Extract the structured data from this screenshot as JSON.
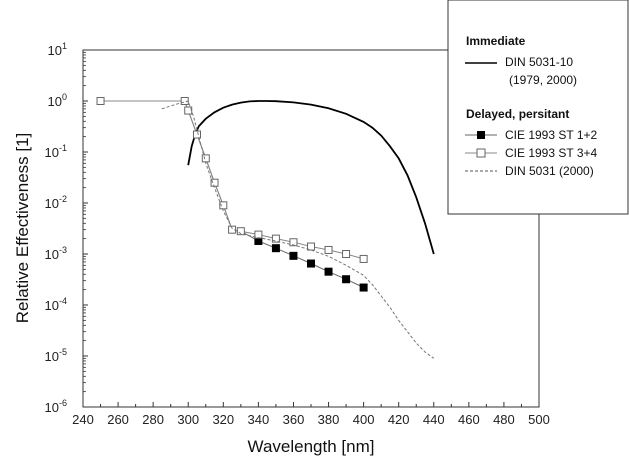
{
  "chart_data": {
    "type": "line",
    "xlabel": "Wavelength [nm]",
    "ylabel": "Relative Effectiveness [1]",
    "xlim": [
      240,
      500
    ],
    "ylim_log10": [
      -6,
      1
    ],
    "y_scale": "log",
    "x_ticks": [
      240,
      260,
      280,
      300,
      320,
      340,
      360,
      380,
      400,
      420,
      440,
      460,
      480,
      500
    ],
    "y_ticks": [
      {
        "exp": -6,
        "base": "10",
        "sup": "-6"
      },
      {
        "exp": -5,
        "base": "10",
        "sup": "-5"
      },
      {
        "exp": -4,
        "base": "10",
        "sup": "-4"
      },
      {
        "exp": -3,
        "base": "10",
        "sup": "-3"
      },
      {
        "exp": -2,
        "base": "10",
        "sup": "-2"
      },
      {
        "exp": -1,
        "base": "10",
        "sup": "-1"
      },
      {
        "exp": 0,
        "base": "10",
        "sup": "0"
      },
      {
        "exp": 1,
        "base": "10",
        "sup": "1"
      }
    ],
    "legend": {
      "placement": "top-right",
      "group1_title": "Immediate",
      "group1_entries": [
        {
          "line1": "DIN 5031-10",
          "line2": "(1979, 2000)"
        }
      ],
      "group2_title": "Delayed, persitant",
      "group2_entries": [
        {
          "label": "CIE 1993 ST 1+2"
        },
        {
          "label": "CIE 1993 ST 3+4"
        },
        {
          "label": "DIN 5031 (2000)"
        }
      ]
    },
    "series": [
      {
        "key": "din_immediate",
        "style": "solid",
        "color": "#000000",
        "points": [
          [
            300,
            0.055
          ],
          [
            302,
            0.13
          ],
          [
            304,
            0.22
          ],
          [
            306,
            0.32
          ],
          [
            310,
            0.45
          ],
          [
            315,
            0.6
          ],
          [
            320,
            0.74
          ],
          [
            325,
            0.85
          ],
          [
            330,
            0.93
          ],
          [
            335,
            0.98
          ],
          [
            340,
            1.0
          ],
          [
            345,
            1.0
          ],
          [
            350,
            0.99
          ],
          [
            360,
            0.94
          ],
          [
            370,
            0.85
          ],
          [
            380,
            0.72
          ],
          [
            390,
            0.56
          ],
          [
            400,
            0.39
          ],
          [
            405,
            0.3
          ],
          [
            410,
            0.21
          ],
          [
            415,
            0.13
          ],
          [
            420,
            0.075
          ],
          [
            425,
            0.035
          ],
          [
            430,
            0.013
          ],
          [
            435,
            0.004
          ],
          [
            440,
            0.001
          ]
        ]
      },
      {
        "key": "cie_st12",
        "style": "solid-filled-squares",
        "color": "#666666",
        "marker_color": "#000000",
        "points": [
          [
            250,
            1.0
          ],
          [
            298,
            1.0
          ],
          [
            300,
            0.65
          ],
          [
            305,
            0.22
          ],
          [
            310,
            0.075
          ],
          [
            315,
            0.025
          ],
          [
            320,
            0.009
          ],
          [
            325,
            0.003
          ],
          [
            330,
            0.0028
          ],
          [
            340,
            0.0018
          ],
          [
            350,
            0.0013
          ],
          [
            360,
            0.00092
          ],
          [
            370,
            0.00065
          ],
          [
            380,
            0.00045
          ],
          [
            390,
            0.00032
          ],
          [
            400,
            0.00022
          ]
        ],
        "marker_x": [
          340,
          350,
          360,
          370,
          380,
          390,
          400
        ]
      },
      {
        "key": "cie_st34",
        "style": "solid-open-squares",
        "color": "#888888",
        "marker_color": "#666666",
        "points": [
          [
            250,
            1.0
          ],
          [
            298,
            1.0
          ],
          [
            300,
            0.65
          ],
          [
            305,
            0.22
          ],
          [
            310,
            0.075
          ],
          [
            315,
            0.025
          ],
          [
            320,
            0.009
          ],
          [
            325,
            0.003
          ],
          [
            330,
            0.0028
          ],
          [
            340,
            0.0024
          ],
          [
            350,
            0.002
          ],
          [
            360,
            0.0017
          ],
          [
            370,
            0.0014
          ],
          [
            380,
            0.0012
          ],
          [
            390,
            0.001
          ],
          [
            400,
            0.0008
          ]
        ],
        "marker_x": [
          250,
          298,
          300,
          305,
          310,
          315,
          320,
          325,
          330,
          340,
          350,
          360,
          370,
          380,
          390,
          400
        ]
      },
      {
        "key": "din_delayed",
        "style": "dashed",
        "color": "#777777",
        "points": [
          [
            285,
            0.7
          ],
          [
            290,
            0.8
          ],
          [
            295,
            0.9
          ],
          [
            300,
            1.0
          ],
          [
            303,
            0.5
          ],
          [
            306,
            0.2
          ],
          [
            310,
            0.06
          ],
          [
            315,
            0.02
          ],
          [
            320,
            0.007
          ],
          [
            325,
            0.0032
          ],
          [
            330,
            0.0025
          ],
          [
            340,
            0.0021
          ],
          [
            350,
            0.0018
          ],
          [
            360,
            0.0015
          ],
          [
            370,
            0.0012
          ],
          [
            380,
            0.0009
          ],
          [
            390,
            0.0006
          ],
          [
            400,
            0.00038
          ],
          [
            405,
            0.00025
          ],
          [
            410,
            0.00015
          ],
          [
            415,
            9e-05
          ],
          [
            420,
            5e-05
          ],
          [
            425,
            3e-05
          ],
          [
            430,
            1.8e-05
          ],
          [
            435,
            1.2e-05
          ],
          [
            440,
            9e-06
          ]
        ]
      }
    ]
  }
}
